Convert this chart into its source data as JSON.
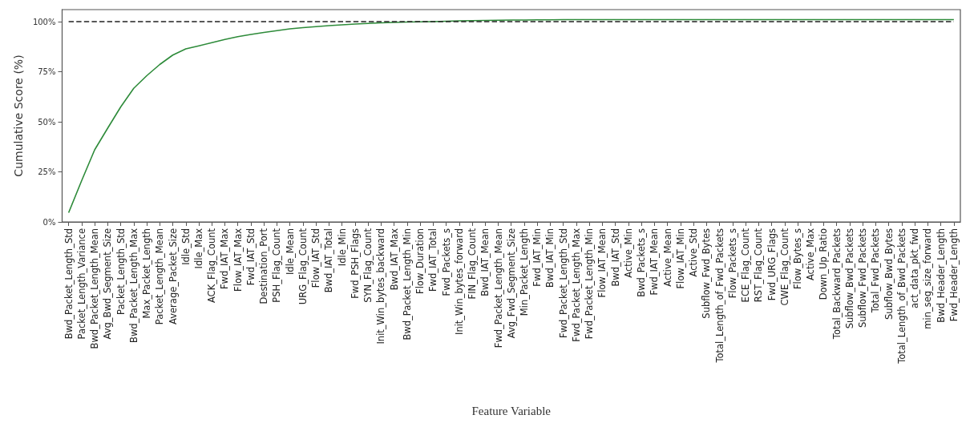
{
  "chart_data": {
    "type": "line",
    "xlabel": "Feature Variable",
    "ylabel": "Cumulative Score (%)",
    "categories": [
      "Bwd_Packet_Length_Std",
      "Packet_Length_Variance",
      "Bwd_Packet_Length_Mean",
      "Avg_Bwd_Segment_Size",
      "Packet_Length_Std",
      "Bwd_Packet_Length_Max",
      "Max_Packet_Length",
      "Packet_Length_Mean",
      "Average_Packet_Size",
      "Idle_Std",
      "Idle_Max",
      "ACK_Flag_Count",
      "Fwd_IAT_Max",
      "Flow_IAT_Max",
      "Fwd_IAT_Std",
      "Destination_Port",
      "PSH_Flag_Count",
      "Idle_Mean",
      "URG_Flag_Count",
      "Flow_IAT_Std",
      "Bwd_IAT_Total",
      "Idle_Min",
      "Fwd_PSH_Flags",
      "SYN_Flag_Count",
      "Init_Win_bytes_backward",
      "Bwd_IAT_Max",
      "Bwd_Packet_Length_Min",
      "Flow_Duration",
      "Fwd_IAT_Total",
      "Fwd_Packets_s",
      "Init_Win_bytes_forward",
      "FIN_Flag_Count",
      "Bwd_IAT_Mean",
      "Fwd_Packet_Length_Mean",
      "Avg_Fwd_Segment_Size",
      "Min_Packet_Length",
      "Fwd_IAT_Min",
      "Bwd_IAT_Min",
      "Fwd_Packet_Length_Std",
      "Fwd_Packet_Length_Max",
      "Fwd_Packet_Length_Min",
      "Flow_IAT_Mean",
      "Bwd_IAT_Std",
      "Active_Min",
      "Bwd_Packets_s",
      "Fwd_IAT_Mean",
      "Active_Mean",
      "Flow_IAT_Min",
      "Active_Std",
      "Subflow_Fwd_Bytes",
      "Total_Length_of_Fwd_Packets",
      "Flow_Packets_s",
      "ECE_Flag_Count",
      "RST_Flag_Count",
      "Fwd_URG_Flags",
      "CWE_Flag_Count",
      "Flow_Bytes_s",
      "Active_Max",
      "Down_Up_Ratio",
      "Total_Backward_Packets",
      "Subflow_Bwd_Packets",
      "Subflow_Fwd_Packets",
      "Total_Fwd_Packets",
      "Subflow_Bwd_Bytes",
      "Total_Length_of_Bwd_Packets",
      "act_data_pkt_fwd",
      "min_seg_size_forward",
      "Bwd_Header_Length",
      "Fwd_Header_Length"
    ],
    "series": [
      {
        "color": "#2e8b3a",
        "values": [
          4.6,
          20.6,
          36,
          46.8,
          57.4,
          66.7,
          73,
          78.6,
          83.3,
          86.4,
          87.9,
          89.5,
          91.1,
          92.5,
          93.6,
          94.6,
          95.5,
          96.4,
          97,
          97.5,
          98,
          98.4,
          98.8,
          99.1,
          99.4,
          99.6,
          99.8,
          99.9,
          100,
          100.2,
          100.4,
          100.5,
          100.6,
          100.7,
          100.8,
          100.8,
          100.9,
          100.9,
          101,
          101,
          101,
          101,
          101,
          101,
          101,
          101,
          101,
          101,
          101,
          101,
          101,
          101,
          101,
          101,
          101,
          101,
          101,
          101,
          101,
          101,
          101,
          101,
          101,
          101,
          101,
          101,
          101,
          101,
          101
        ]
      }
    ],
    "ylim": [
      0,
      106
    ],
    "yticks": [
      {
        "value": 0,
        "label": "0%"
      },
      {
        "value": 25,
        "label": "25%"
      },
      {
        "value": 50,
        "label": "50%"
      },
      {
        "value": 75,
        "label": "75%"
      },
      {
        "value": 100,
        "label": "100%"
      }
    ],
    "ref_lines": [
      {
        "axis": "y",
        "value": 100,
        "color": "#222222",
        "line_style": "dashed"
      }
    ],
    "grid": false,
    "marker": "none",
    "line_style": "solid"
  }
}
